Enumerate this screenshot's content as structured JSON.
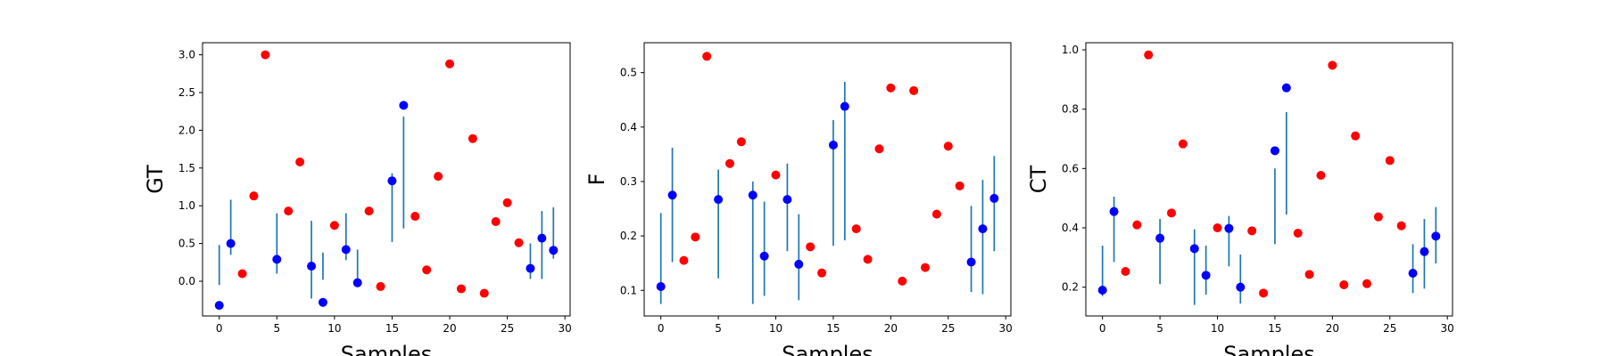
{
  "chart_data": [
    {
      "type": "scatter",
      "xlabel": "Samples",
      "ylabel": "GT",
      "x": [
        0,
        1,
        2,
        3,
        4,
        5,
        6,
        7,
        8,
        9,
        10,
        11,
        12,
        13,
        14,
        15,
        16,
        17,
        18,
        19,
        20,
        21,
        22,
        23,
        24,
        25,
        26,
        27,
        28,
        29
      ],
      "values": [
        -0.32,
        0.5,
        0.1,
        1.13,
        3.0,
        0.29,
        0.93,
        1.58,
        0.2,
        -0.28,
        0.74,
        0.42,
        -0.02,
        0.93,
        -0.07,
        1.33,
        2.33,
        0.86,
        0.15,
        1.39,
        2.88,
        -0.1,
        1.89,
        -0.16,
        0.79,
        1.04,
        0.51,
        0.17,
        0.57,
        0.41
      ],
      "colors": [
        "#0000ff",
        "#0000ff",
        "#ff0000",
        "#ff0000",
        "#ff0000",
        "#0000ff",
        "#ff0000",
        "#ff0000",
        "#0000ff",
        "#0000ff",
        "#ff0000",
        "#0000ff",
        "#0000ff",
        "#ff0000",
        "#ff0000",
        "#0000ff",
        "#0000ff",
        "#ff0000",
        "#ff0000",
        "#ff0000",
        "#ff0000",
        "#ff0000",
        "#ff0000",
        "#ff0000",
        "#ff0000",
        "#ff0000",
        "#ff0000",
        "#0000ff",
        "#0000ff",
        "#0000ff"
      ],
      "err_low": [
        -0.05,
        0.35,
        null,
        null,
        null,
        0.1,
        null,
        null,
        -0.23,
        0.02,
        null,
        0.28,
        -0.08,
        null,
        null,
        0.52,
        0.7,
        null,
        null,
        null,
        null,
        null,
        null,
        null,
        null,
        null,
        null,
        0.03,
        0.03,
        0.3
      ],
      "err_high": [
        0.48,
        1.08,
        null,
        null,
        null,
        0.9,
        null,
        null,
        0.8,
        0.38,
        null,
        0.9,
        0.42,
        null,
        null,
        1.43,
        2.18,
        null,
        null,
        null,
        null,
        null,
        null,
        null,
        null,
        null,
        null,
        0.5,
        0.93,
        0.98
      ],
      "err_color": "#1f77b4",
      "xlim": [
        -1.45,
        30.45
      ],
      "ylim": [
        -0.46,
        3.16
      ],
      "xticks": [
        0,
        5,
        10,
        15,
        20,
        25,
        30
      ],
      "yticks": [
        {
          "value": 0,
          "label": "0.0"
        },
        0.5,
        {
          "value": 1,
          "label": "1.0"
        },
        1.5,
        {
          "value": 2,
          "label": "2.0"
        },
        2.5,
        {
          "value": 3,
          "label": "3.0"
        }
      ]
    },
    {
      "type": "scatter",
      "xlabel": "Samples",
      "ylabel": "F",
      "x": [
        0,
        1,
        2,
        3,
        4,
        5,
        6,
        7,
        8,
        9,
        10,
        11,
        12,
        13,
        14,
        15,
        16,
        17,
        18,
        19,
        20,
        21,
        22,
        23,
        24,
        25,
        26,
        27,
        28,
        29
      ],
      "values": [
        0.107,
        0.275,
        0.155,
        0.198,
        0.53,
        0.267,
        0.333,
        0.373,
        0.275,
        0.163,
        0.312,
        0.267,
        0.148,
        0.18,
        0.132,
        0.367,
        0.438,
        0.213,
        0.157,
        0.36,
        0.472,
        0.117,
        0.467,
        0.142,
        0.24,
        0.365,
        0.292,
        0.152,
        0.213,
        0.269
      ],
      "colors": [
        "#0000ff",
        "#0000ff",
        "#ff0000",
        "#ff0000",
        "#ff0000",
        "#0000ff",
        "#ff0000",
        "#ff0000",
        "#0000ff",
        "#0000ff",
        "#ff0000",
        "#0000ff",
        "#0000ff",
        "#ff0000",
        "#ff0000",
        "#0000ff",
        "#0000ff",
        "#ff0000",
        "#ff0000",
        "#ff0000",
        "#ff0000",
        "#ff0000",
        "#ff0000",
        "#ff0000",
        "#ff0000",
        "#ff0000",
        "#ff0000",
        "#0000ff",
        "#0000ff",
        "#0000ff"
      ],
      "err_low": [
        0.075,
        0.152,
        null,
        null,
        null,
        0.122,
        null,
        null,
        0.075,
        0.09,
        null,
        0.172,
        0.082,
        null,
        null,
        0.182,
        0.192,
        null,
        null,
        null,
        null,
        null,
        null,
        null,
        null,
        null,
        null,
        0.097,
        0.093,
        0.172
      ],
      "err_high": [
        0.242,
        0.362,
        null,
        null,
        null,
        0.322,
        null,
        null,
        0.3,
        0.263,
        null,
        0.333,
        0.24,
        null,
        null,
        0.413,
        0.483,
        null,
        null,
        null,
        null,
        null,
        null,
        null,
        null,
        null,
        null,
        0.255,
        0.303,
        0.347
      ],
      "err_color": "#1f77b4",
      "xlim": [
        -1.45,
        30.45
      ],
      "ylim": [
        0.053,
        0.555
      ],
      "xticks": [
        0,
        5,
        10,
        15,
        20,
        25,
        30
      ],
      "yticks": [
        0.1,
        0.2,
        0.3,
        0.4,
        0.5
      ]
    },
    {
      "type": "scatter",
      "xlabel": "Samples",
      "ylabel": "CT",
      "x": [
        0,
        1,
        2,
        3,
        4,
        5,
        6,
        7,
        8,
        9,
        10,
        11,
        12,
        13,
        14,
        15,
        16,
        17,
        18,
        19,
        20,
        21,
        22,
        23,
        24,
        25,
        26,
        27,
        28,
        29
      ],
      "values": [
        0.19,
        0.455,
        0.253,
        0.41,
        0.983,
        0.365,
        0.45,
        0.683,
        0.33,
        0.24,
        0.4,
        0.398,
        0.2,
        0.39,
        0.18,
        0.66,
        0.872,
        0.382,
        0.243,
        0.577,
        0.948,
        0.208,
        0.71,
        0.212,
        0.437,
        0.627,
        0.407,
        0.247,
        0.32,
        0.372
      ],
      "colors": [
        "#0000ff",
        "#0000ff",
        "#ff0000",
        "#ff0000",
        "#ff0000",
        "#0000ff",
        "#ff0000",
        "#ff0000",
        "#0000ff",
        "#0000ff",
        "#ff0000",
        "#0000ff",
        "#0000ff",
        "#ff0000",
        "#ff0000",
        "#0000ff",
        "#0000ff",
        "#ff0000",
        "#ff0000",
        "#ff0000",
        "#ff0000",
        "#ff0000",
        "#ff0000",
        "#ff0000",
        "#ff0000",
        "#ff0000",
        "#ff0000",
        "#0000ff",
        "#0000ff",
        "#0000ff"
      ],
      "err_low": [
        0.17,
        0.285,
        null,
        null,
        null,
        0.21,
        null,
        null,
        0.14,
        0.175,
        null,
        0.27,
        0.145,
        null,
        null,
        0.345,
        0.445,
        null,
        null,
        null,
        null,
        null,
        null,
        null,
        null,
        null,
        null,
        0.18,
        0.195,
        0.28
      ],
      "err_high": [
        0.34,
        0.505,
        null,
        null,
        null,
        0.43,
        null,
        null,
        0.395,
        0.34,
        null,
        0.44,
        0.31,
        null,
        null,
        0.6,
        0.79,
        null,
        null,
        null,
        null,
        null,
        null,
        null,
        null,
        null,
        null,
        0.345,
        0.43,
        0.47
      ],
      "err_color": "#1f77b4",
      "xlim": [
        -1.45,
        30.45
      ],
      "ylim": [
        0.103,
        1.024
      ],
      "xticks": [
        0,
        5,
        10,
        15,
        20,
        25,
        30
      ],
      "yticks": [
        0.2,
        0.4,
        0.6,
        0.8,
        {
          "value": 1,
          "label": "1.0"
        }
      ]
    }
  ]
}
